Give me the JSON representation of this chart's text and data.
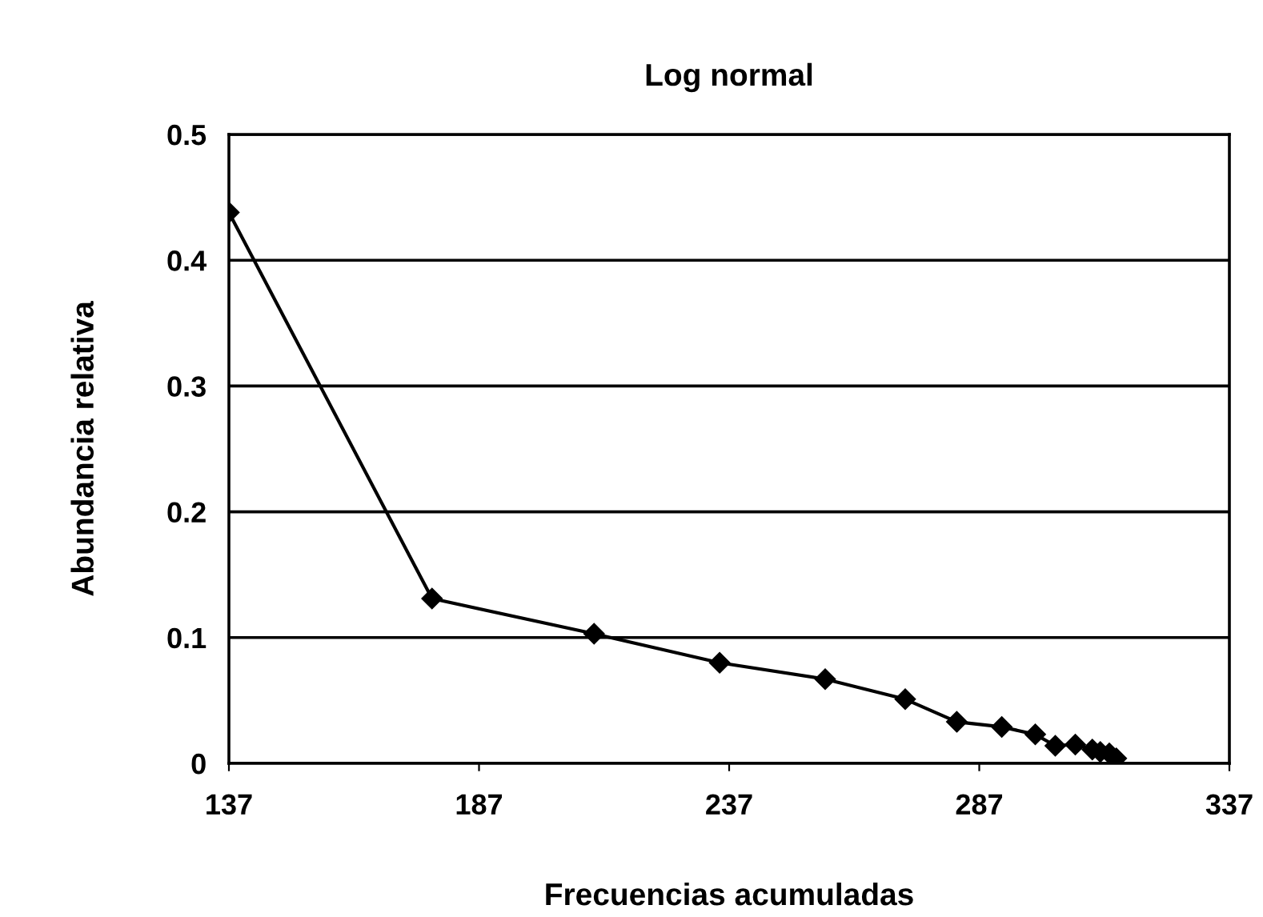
{
  "chart_data": {
    "type": "line",
    "title": "Log normal",
    "xlabel": "Frecuencias acumuladas",
    "ylabel": "Abundancia relativa",
    "x": [
      137,
      177.6,
      210,
      235.1,
      256.2,
      272.2,
      282.5,
      291.5,
      298.2,
      302.2,
      306.2,
      309.6,
      311.2,
      313.0,
      314.4
    ],
    "series": [
      {
        "color": "#000000",
        "values": [
          0.438,
          0.131,
          0.103,
          0.08,
          0.067,
          0.051,
          0.033,
          0.029,
          0.023,
          0.014,
          0.015,
          0.011,
          0.009,
          0.008,
          0.004
        ]
      }
    ],
    "xlim": [
      137,
      337
    ],
    "xticks": [
      137,
      187,
      237,
      287,
      337
    ],
    "ylim": [
      0,
      0.5
    ],
    "yticks": [
      0,
      0.1,
      0.2,
      0.3,
      0.4,
      0.5
    ],
    "grid": "y",
    "marker": "diamond",
    "line_style": "solid",
    "legend": false
  }
}
